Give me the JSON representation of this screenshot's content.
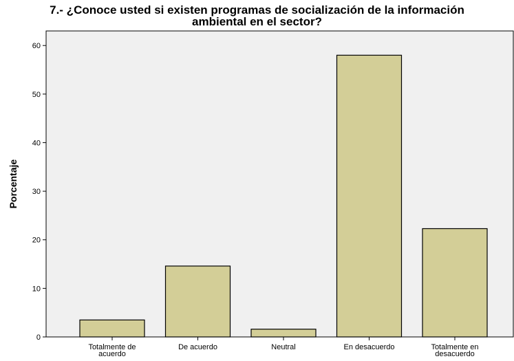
{
  "chart_data": {
    "type": "bar",
    "title_lines": [
      "7.- ¿Conoce usted si existen programas de socialización de la información",
      "ambiental en el sector?"
    ],
    "xlabel": "",
    "ylabel": "Porcentaje",
    "categories": [
      [
        "Totalmente de",
        "acuerdo"
      ],
      [
        "De acuerdo"
      ],
      [
        "Neutral"
      ],
      [
        "En desacuerdo"
      ],
      [
        "Totalmente en",
        "desacuerdo"
      ]
    ],
    "values": [
      3.5,
      14.6,
      1.6,
      58.0,
      22.3
    ],
    "ylim": [
      0,
      63
    ],
    "yticks": [
      0,
      10,
      20,
      30,
      40,
      50,
      60
    ],
    "grid": false,
    "colors": {
      "plot_background": "#f0f0f0",
      "bar_fill": "#d3ce97",
      "bar_stroke": "#000000"
    }
  }
}
